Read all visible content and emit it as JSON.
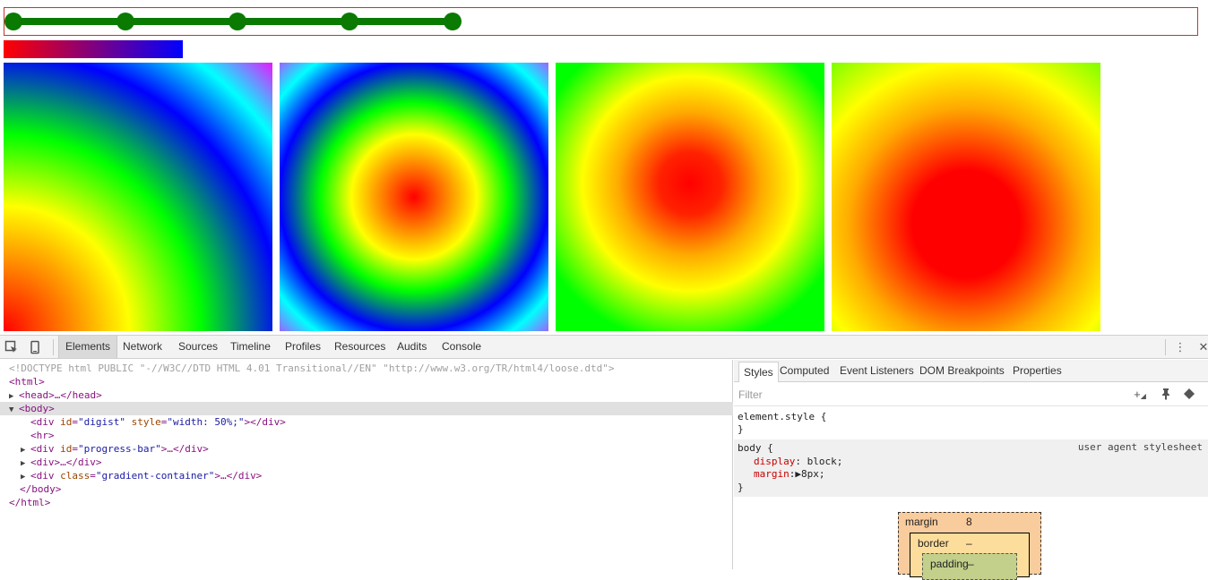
{
  "page": {
    "steps": [
      1,
      2,
      3,
      4,
      5
    ],
    "progress_fraction": 0.5,
    "colors": {
      "steps_green": "#0a7a00",
      "steps_border": "#c0392b",
      "progress_start": "#ff0000",
      "progress_end": "#0000ff"
    }
  },
  "devtools": {
    "toolbar": {
      "inspect_icon": "inspect-element-icon",
      "device_icon": "device-mode-icon",
      "tabs": [
        "Elements",
        "Network",
        "Sources",
        "Timeline",
        "Profiles",
        "Resources",
        "Audits",
        "Console"
      ],
      "active_tab": "Elements",
      "more_icon": "⋮",
      "close_icon": "✕"
    },
    "dom": {
      "doctype": "<!DOCTYPE html PUBLIC \"-//W3C//DTD HTML 4.01 Transitional//EN\" \"http://www.w3.org/TR/html4/loose.dtd\">",
      "html_open": "<html>",
      "head": "<head>…</head>",
      "body_open": "<body>",
      "div_digist": {
        "tag_open": "<div ",
        "id_name": "id",
        "id_val": "\"digist\"",
        "style_name": " style",
        "style_val": "\"width: 50%;\"",
        "tag_close": "></div>"
      },
      "hr": "<hr>",
      "div_progress": {
        "tag_open": "<div ",
        "id_name": "id",
        "id_val": "\"progress-bar\"",
        "tag_close": ">…</div>"
      },
      "div_plain": "<div>…</div>",
      "div_gradient": {
        "tag_open": "<div ",
        "class_name": "class",
        "class_val": "\"gradient-container\"",
        "tag_close": ">…</div>"
      },
      "body_close": "</body>",
      "html_close": "</html>"
    },
    "styles": {
      "tabs": [
        "Styles",
        "Computed",
        "Event Listeners",
        "DOM Breakpoints",
        "Properties"
      ],
      "active_tab": "Styles",
      "filter_placeholder": "Filter",
      "element_style_open": "element.style {",
      "element_style_close": "}",
      "body_rule_open": "body {",
      "ua_label": "user agent stylesheet",
      "display_name": "display",
      "display_value": ": block;",
      "margin_name": "margin",
      "margin_value": ":▶8px;",
      "body_rule_close": "}",
      "box_model": {
        "margin_label": "margin",
        "margin_value": "8",
        "border_label": "border",
        "border_value": "–",
        "padding_label": "padding",
        "padding_value": "–"
      }
    }
  }
}
